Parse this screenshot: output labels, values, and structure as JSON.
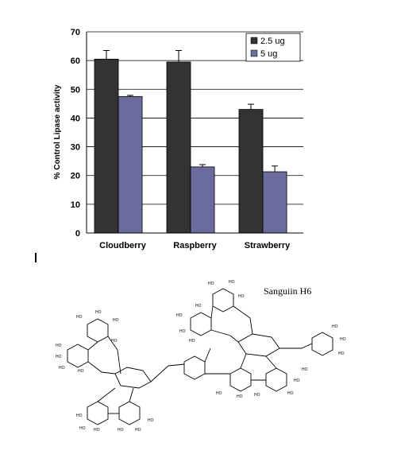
{
  "chart_data": {
    "type": "bar",
    "categories": [
      "Cloudberry",
      "Raspberry",
      "Strawberry"
    ],
    "series": [
      {
        "name": "2.5 ug",
        "color": "#333333",
        "values": [
          60.5,
          59.5,
          43
        ],
        "errors": [
          3,
          4,
          1.8
        ]
      },
      {
        "name": "5 ug",
        "color": "#6b6b9e",
        "values": [
          47.5,
          23,
          21.3
        ],
        "errors": [
          0.4,
          0.8,
          2
        ]
      }
    ],
    "ylabel": "% Control Lipase activity",
    "xlabel": "",
    "ylim": [
      0,
      70
    ],
    "yticks": [
      "0",
      "10",
      "20",
      "30",
      "40",
      "50",
      "60",
      "70"
    ],
    "grid": true,
    "legend_position": "top-right"
  },
  "figure": {
    "marker": "I",
    "structure_title": "Sanguiin H6",
    "oh_label": "HO"
  }
}
